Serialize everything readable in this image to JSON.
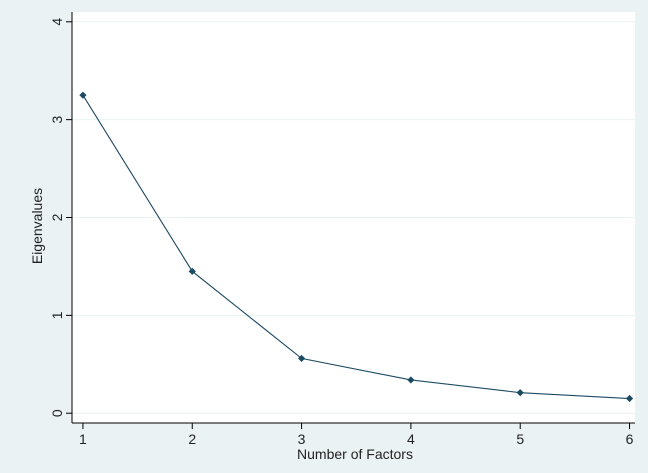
{
  "chart_data": {
    "type": "line",
    "title": "",
    "xlabel": "Number of Factors",
    "ylabel": "Eigenvalues",
    "x": [
      1,
      2,
      3,
      4,
      5,
      6
    ],
    "series": [
      {
        "values": [
          3.25,
          1.45,
          0.56,
          0.34,
          0.21,
          0.15
        ]
      }
    ],
    "xticks": [
      "1",
      "2",
      "3",
      "4",
      "5",
      "6"
    ],
    "yticks": [
      "0",
      "1",
      "2",
      "3",
      "4"
    ],
    "xlim": [
      0.9,
      6.05
    ],
    "ylim": [
      -0.1,
      4.1
    ],
    "grid": true,
    "legend": "none",
    "colors": {
      "background": "#eaf2f3",
      "plot_background": "#ffffff",
      "gridline": "#eaf2f3",
      "line": "#1c4a63",
      "marker": "#1c4a63",
      "axis": "#000000"
    }
  }
}
